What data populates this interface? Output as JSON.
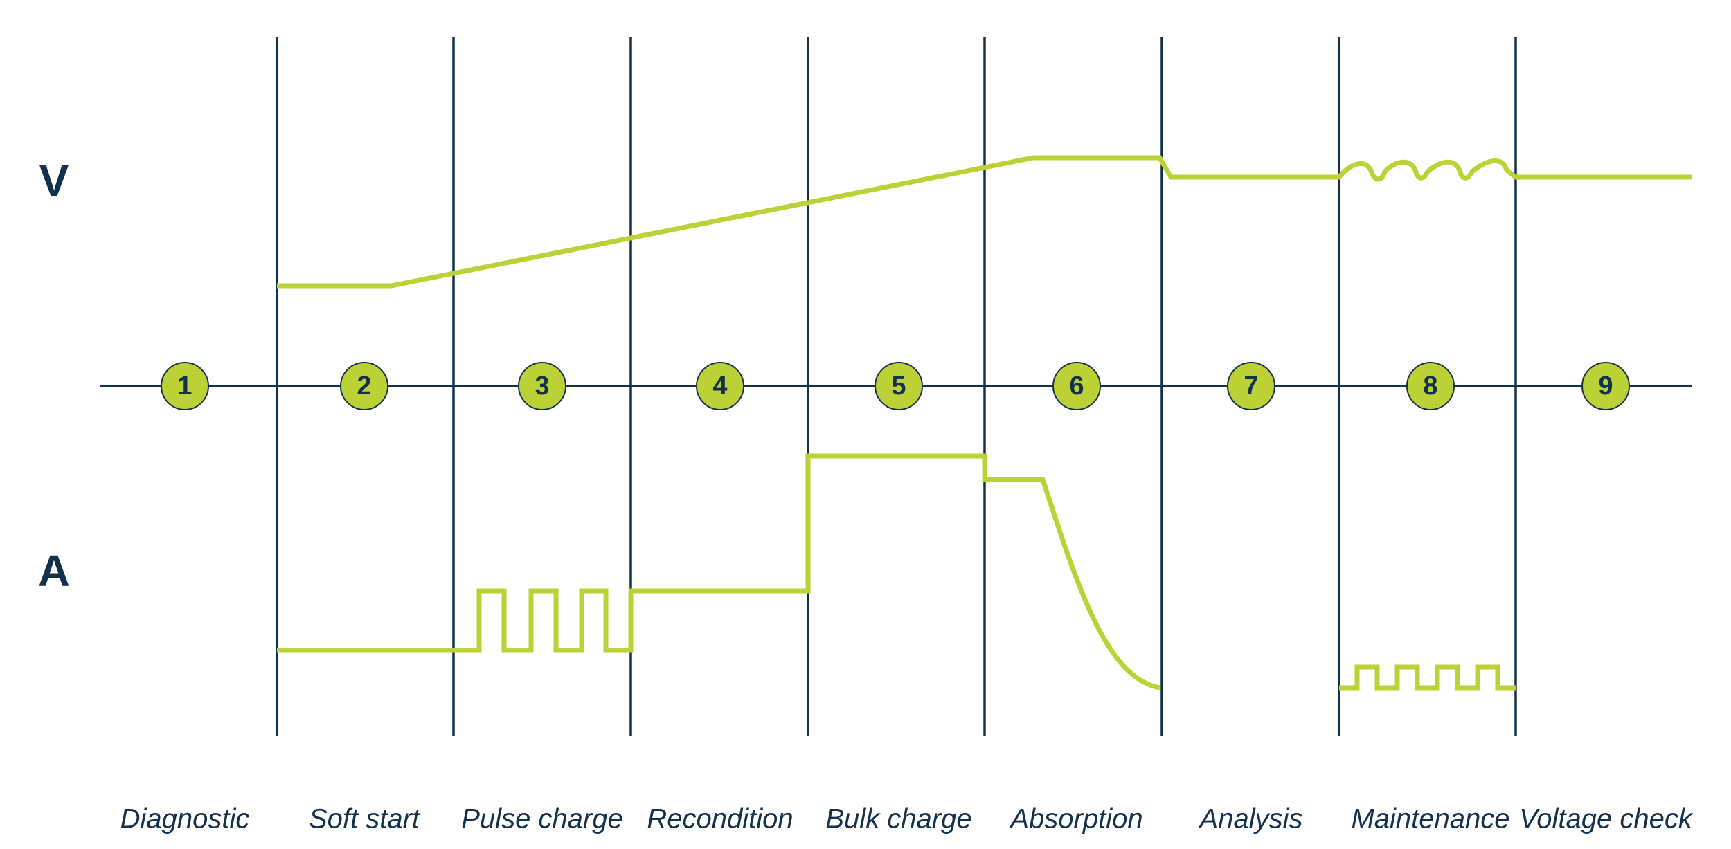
{
  "axes": {
    "voltage": "V",
    "current": "A"
  },
  "stages": [
    {
      "number": "1",
      "label": "Diagnostic"
    },
    {
      "number": "2",
      "label": "Soft start"
    },
    {
      "number": "3",
      "label": "Pulse charge"
    },
    {
      "number": "4",
      "label": "Recondition"
    },
    {
      "number": "5",
      "label": "Bulk charge"
    },
    {
      "number": "6",
      "label": "Absorption"
    },
    {
      "number": "7",
      "label": "Analysis"
    },
    {
      "number": "8",
      "label": "Maintenance"
    },
    {
      "number": "9",
      "label": "Voltage check"
    }
  ]
}
